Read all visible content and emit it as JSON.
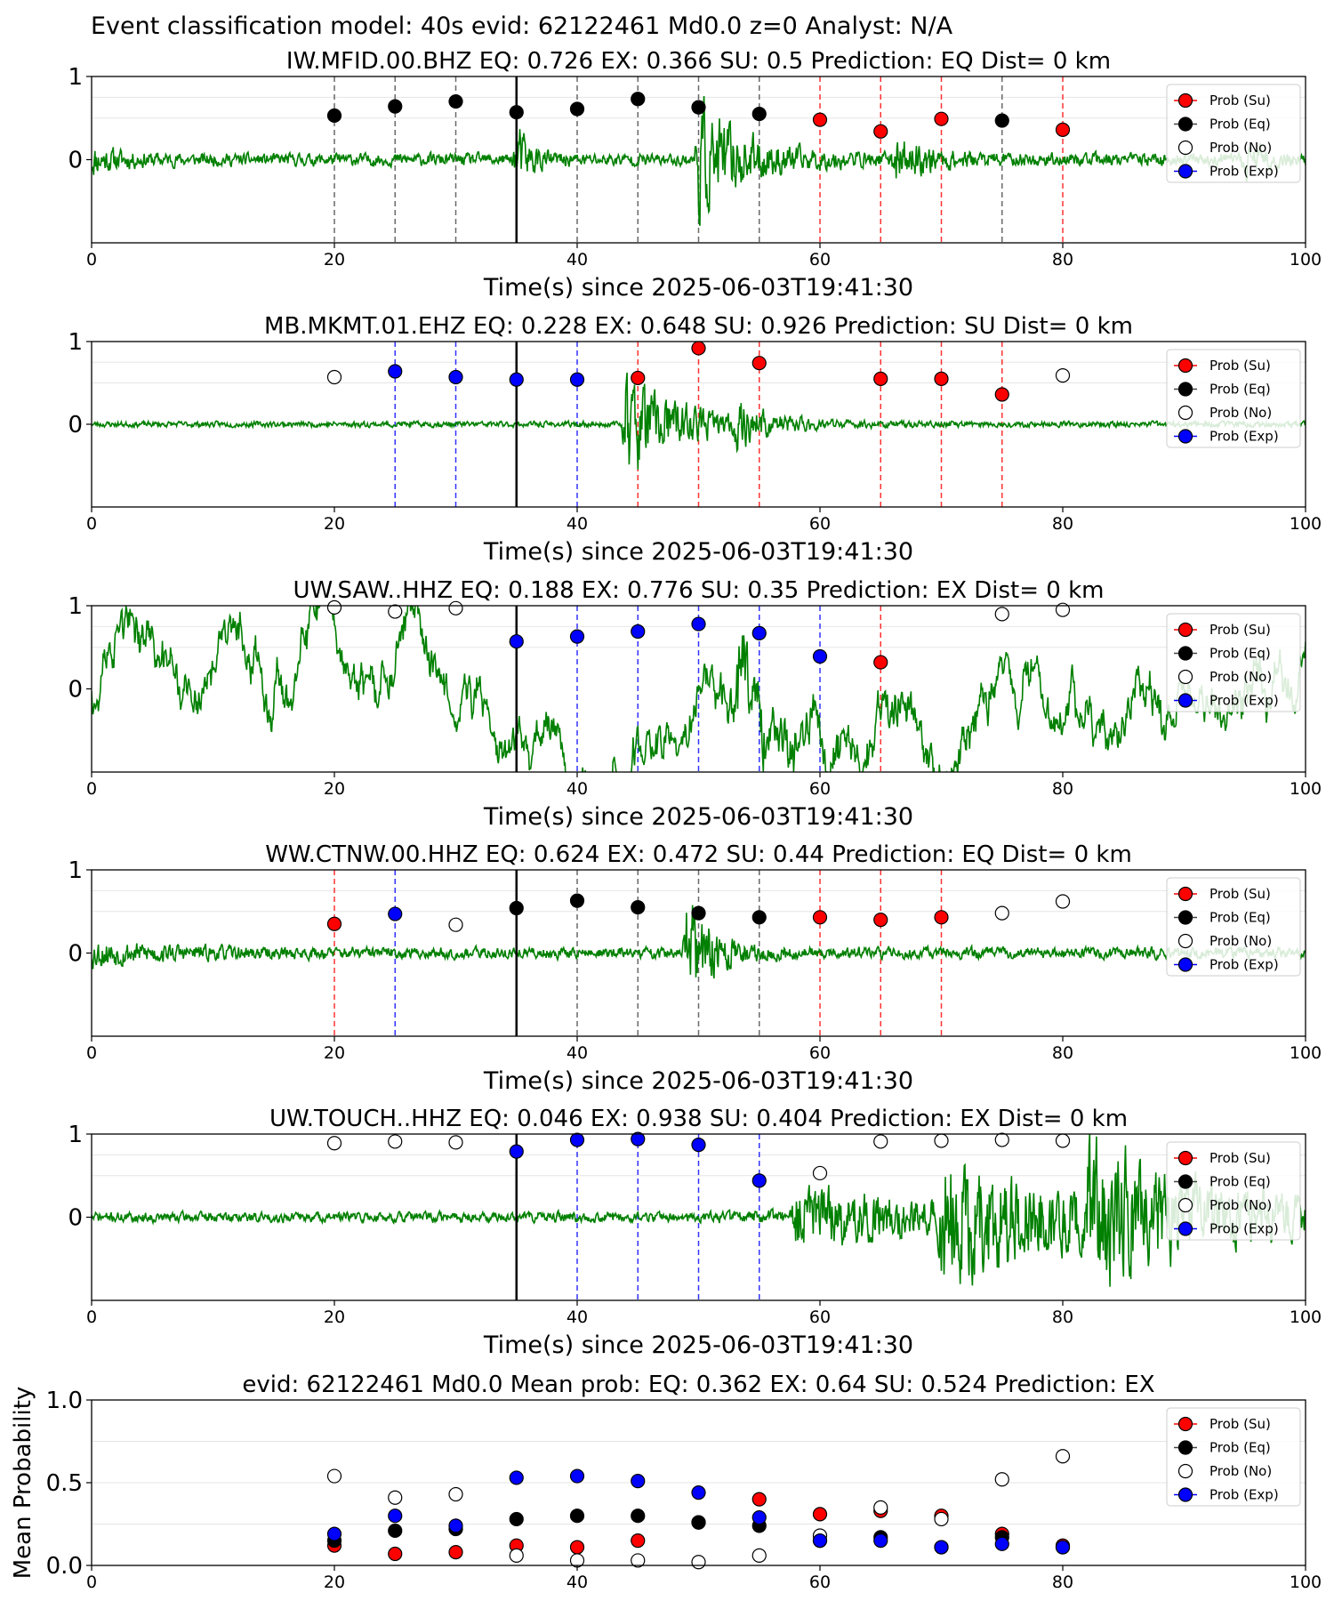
{
  "suptitle": "Event classification model: 40s evid: 62122461 Md0.0 z=0 Analyst: N/A",
  "colors": {
    "su": "#ff0000",
    "eq": "#000000",
    "no": "#ffffff",
    "exp": "#0000ff",
    "waveform": "#008000",
    "pick": "#000000"
  },
  "legend": [
    "Prob (Su)",
    "Prob (Eq)",
    "Prob (No)",
    "Prob (Exp)"
  ],
  "chart_data": [
    {
      "type": "scatter",
      "title": "IW.MFID.00.BHZ   EQ: 0.726  EX: 0.366  SU: 0.5   Prediction: EQ    Dist= 0 km",
      "xlabel": "Time(s) since 2025-06-03T19:41:30",
      "ylabel": "",
      "xlim": [
        0,
        100
      ],
      "ylim": [
        -1,
        1
      ],
      "xticks": [
        "0",
        "20",
        "40",
        "60",
        "80",
        "100"
      ],
      "yticks": [
        "0",
        "1"
      ],
      "pick_time": 35,
      "waveform_seed": 11,
      "waveform_events": [
        [
          0,
          0.2,
          2.5
        ],
        [
          35,
          0.55,
          1.2
        ],
        [
          50,
          0.95,
          4
        ],
        [
          66,
          0.35,
          3
        ],
        [
          95,
          0.4,
          1.2
        ]
      ],
      "waveform_noise": 0.11,
      "points": [
        {
          "x": 20,
          "y": 0.53,
          "cls": "eq"
        },
        {
          "x": 25,
          "y": 0.64,
          "cls": "eq"
        },
        {
          "x": 30,
          "y": 0.7,
          "cls": "eq"
        },
        {
          "x": 35,
          "y": 0.57,
          "cls": "eq"
        },
        {
          "x": 40,
          "y": 0.61,
          "cls": "eq"
        },
        {
          "x": 45,
          "y": 0.73,
          "cls": "eq"
        },
        {
          "x": 50,
          "y": 0.63,
          "cls": "eq"
        },
        {
          "x": 55,
          "y": 0.55,
          "cls": "eq"
        },
        {
          "x": 60,
          "y": 0.48,
          "cls": "su"
        },
        {
          "x": 65,
          "y": 0.34,
          "cls": "su"
        },
        {
          "x": 70,
          "y": 0.49,
          "cls": "su"
        },
        {
          "x": 75,
          "y": 0.47,
          "cls": "eq"
        },
        {
          "x": 80,
          "y": 0.36,
          "cls": "su"
        }
      ]
    },
    {
      "type": "scatter",
      "title": "MB.MKMT.01.EHZ   EQ: 0.228  EX: 0.648  SU: 0.926   Prediction: SU    Dist= 0 km",
      "xlabel": "Time(s) since 2025-06-03T19:41:30",
      "ylabel": "",
      "xlim": [
        0,
        100
      ],
      "ylim": [
        -1,
        1
      ],
      "xticks": [
        "0",
        "20",
        "40",
        "60",
        "80",
        "100"
      ],
      "yticks": [
        "0",
        "1"
      ],
      "pick_time": 35,
      "waveform_seed": 23,
      "waveform_events": [
        [
          44,
          0.95,
          4.5
        ],
        [
          53,
          0.3,
          3
        ]
      ],
      "waveform_noise": 0.05,
      "points": [
        {
          "x": 20,
          "y": 0.57,
          "cls": "no"
        },
        {
          "x": 25,
          "y": 0.64,
          "cls": "exp"
        },
        {
          "x": 30,
          "y": 0.57,
          "cls": "exp"
        },
        {
          "x": 35,
          "y": 0.54,
          "cls": "exp"
        },
        {
          "x": 40,
          "y": 0.54,
          "cls": "exp"
        },
        {
          "x": 45,
          "y": 0.56,
          "cls": "su"
        },
        {
          "x": 50,
          "y": 0.92,
          "cls": "su"
        },
        {
          "x": 55,
          "y": 0.74,
          "cls": "su"
        },
        {
          "x": 65,
          "y": 0.55,
          "cls": "su"
        },
        {
          "x": 70,
          "y": 0.55,
          "cls": "su"
        },
        {
          "x": 75,
          "y": 0.36,
          "cls": "su"
        },
        {
          "x": 80,
          "y": 0.59,
          "cls": "no"
        }
      ]
    },
    {
      "type": "scatter",
      "title": "UW.SAW..HHZ   EQ: 0.188  EX: 0.776  SU: 0.35   Prediction: EX    Dist= 0 km",
      "xlabel": "Time(s) since 2025-06-03T19:41:30",
      "ylabel": "",
      "xlim": [
        0,
        100
      ],
      "ylim": [
        -1,
        1
      ],
      "xticks": [
        "0",
        "20",
        "40",
        "60",
        "80",
        "100"
      ],
      "yticks": [
        "0",
        "1"
      ],
      "pick_time": 35,
      "waveform_seed": 37,
      "waveform_events": [
        [
          53,
          0.75,
          5
        ]
      ],
      "waveform_noise": 0.38,
      "waveform_slow": true,
      "points": [
        {
          "x": 20,
          "y": 0.98,
          "cls": "no"
        },
        {
          "x": 25,
          "y": 0.93,
          "cls": "no"
        },
        {
          "x": 30,
          "y": 0.97,
          "cls": "no"
        },
        {
          "x": 35,
          "y": 0.57,
          "cls": "exp"
        },
        {
          "x": 40,
          "y": 0.63,
          "cls": "exp"
        },
        {
          "x": 45,
          "y": 0.69,
          "cls": "exp"
        },
        {
          "x": 50,
          "y": 0.78,
          "cls": "exp"
        },
        {
          "x": 55,
          "y": 0.67,
          "cls": "exp"
        },
        {
          "x": 60,
          "y": 0.39,
          "cls": "exp"
        },
        {
          "x": 65,
          "y": 0.32,
          "cls": "su"
        },
        {
          "x": 75,
          "y": 0.9,
          "cls": "no"
        },
        {
          "x": 80,
          "y": 0.95,
          "cls": "no"
        }
      ]
    },
    {
      "type": "scatter",
      "title": "WW.CTNW.00.HHZ   EQ: 0.624  EX: 0.472  SU: 0.44   Prediction: EQ    Dist= 0 km",
      "xlabel": "Time(s) since 2025-06-03T19:41:30",
      "ylabel": "",
      "xlim": [
        0,
        100
      ],
      "ylim": [
        -1,
        1
      ],
      "xticks": [
        "0",
        "20",
        "40",
        "60",
        "80",
        "100"
      ],
      "yticks": [
        "0",
        "1"
      ],
      "pick_time": 35,
      "waveform_seed": 53,
      "waveform_events": [
        [
          0,
          0.18,
          6
        ],
        [
          49,
          0.9,
          2.5
        ]
      ],
      "waveform_noise": 0.1,
      "points": [
        {
          "x": 20,
          "y": 0.35,
          "cls": "su"
        },
        {
          "x": 25,
          "y": 0.47,
          "cls": "exp"
        },
        {
          "x": 30,
          "y": 0.34,
          "cls": "no"
        },
        {
          "x": 35,
          "y": 0.54,
          "cls": "eq"
        },
        {
          "x": 40,
          "y": 0.63,
          "cls": "eq"
        },
        {
          "x": 45,
          "y": 0.55,
          "cls": "eq"
        },
        {
          "x": 50,
          "y": 0.48,
          "cls": "eq"
        },
        {
          "x": 55,
          "y": 0.43,
          "cls": "eq"
        },
        {
          "x": 60,
          "y": 0.43,
          "cls": "su"
        },
        {
          "x": 65,
          "y": 0.4,
          "cls": "su"
        },
        {
          "x": 70,
          "y": 0.43,
          "cls": "su"
        },
        {
          "x": 75,
          "y": 0.48,
          "cls": "no"
        },
        {
          "x": 80,
          "y": 0.62,
          "cls": "no"
        }
      ]
    },
    {
      "type": "scatter",
      "title": "UW.TOUCH..HHZ   EQ: 0.046  EX: 0.938  SU: 0.404   Prediction: EX    Dist= 0 km",
      "xlabel": "Time(s) since 2025-06-03T19:41:30",
      "ylabel": "",
      "xlim": [
        0,
        100
      ],
      "ylim": [
        -1,
        1
      ],
      "xticks": [
        "0",
        "20",
        "40",
        "60",
        "80",
        "100"
      ],
      "yticks": [
        "0",
        "1"
      ],
      "pick_time": 35,
      "waveform_seed": 71,
      "waveform_events": [
        [
          58,
          0.55,
          7
        ],
        [
          70,
          0.7,
          9
        ],
        [
          82,
          0.65,
          8
        ]
      ],
      "waveform_noise": 0.15,
      "waveform_ramp": true,
      "points": [
        {
          "x": 20,
          "y": 0.89,
          "cls": "no"
        },
        {
          "x": 25,
          "y": 0.91,
          "cls": "no"
        },
        {
          "x": 30,
          "y": 0.9,
          "cls": "no"
        },
        {
          "x": 35,
          "y": 0.79,
          "cls": "exp"
        },
        {
          "x": 40,
          "y": 0.93,
          "cls": "exp"
        },
        {
          "x": 45,
          "y": 0.94,
          "cls": "exp"
        },
        {
          "x": 50,
          "y": 0.87,
          "cls": "exp"
        },
        {
          "x": 55,
          "y": 0.44,
          "cls": "exp"
        },
        {
          "x": 60,
          "y": 0.53,
          "cls": "no"
        },
        {
          "x": 65,
          "y": 0.91,
          "cls": "no"
        },
        {
          "x": 70,
          "y": 0.92,
          "cls": "no"
        },
        {
          "x": 75,
          "y": 0.93,
          "cls": "no"
        },
        {
          "x": 80,
          "y": 0.92,
          "cls": "no"
        }
      ]
    },
    {
      "type": "scatter",
      "title": "evid: 62122461   Md0.0   Mean prob:    EQ: 0.362   EX: 0.64   SU: 0.524    Prediction: EX",
      "xlabel": "",
      "ylabel": "Mean Probability",
      "xlim": [
        0,
        100
      ],
      "ylim": [
        0,
        1
      ],
      "xticks": [
        "0",
        "20",
        "40",
        "60",
        "80",
        "100"
      ],
      "yticks": [
        "0.0",
        "0.5",
        "1.0"
      ],
      "series": [
        {
          "name": "Prob (Su)",
          "cls": "su",
          "x": [
            20,
            25,
            30,
            35,
            40,
            45,
            50,
            55,
            60,
            65,
            70,
            75,
            80
          ],
          "y": [
            0.12,
            0.07,
            0.08,
            0.12,
            0.11,
            0.15,
            0.26,
            0.4,
            0.31,
            0.33,
            0.3,
            0.19,
            0.12
          ]
        },
        {
          "name": "Prob (Eq)",
          "cls": "eq",
          "x": [
            20,
            25,
            30,
            35,
            40,
            45,
            50,
            55,
            60,
            65,
            70,
            75,
            80
          ],
          "y": [
            0.15,
            0.21,
            0.22,
            0.28,
            0.3,
            0.3,
            0.26,
            0.24,
            0.15,
            0.17,
            0.11,
            0.17,
            0.11
          ]
        },
        {
          "name": "Prob (No)",
          "cls": "no",
          "x": [
            20,
            25,
            30,
            35,
            40,
            45,
            50,
            55,
            60,
            65,
            70,
            75,
            80
          ],
          "y": [
            0.54,
            0.41,
            0.43,
            0.06,
            0.03,
            0.03,
            0.02,
            0.06,
            0.18,
            0.35,
            0.28,
            0.52,
            0.66
          ]
        },
        {
          "name": "Prob (Exp)",
          "cls": "exp",
          "x": [
            20,
            25,
            30,
            35,
            40,
            45,
            50,
            55,
            60,
            65,
            70,
            75,
            80
          ],
          "y": [
            0.19,
            0.3,
            0.24,
            0.53,
            0.54,
            0.51,
            0.44,
            0.29,
            0.15,
            0.15,
            0.11,
            0.13,
            0.11
          ]
        }
      ]
    }
  ]
}
